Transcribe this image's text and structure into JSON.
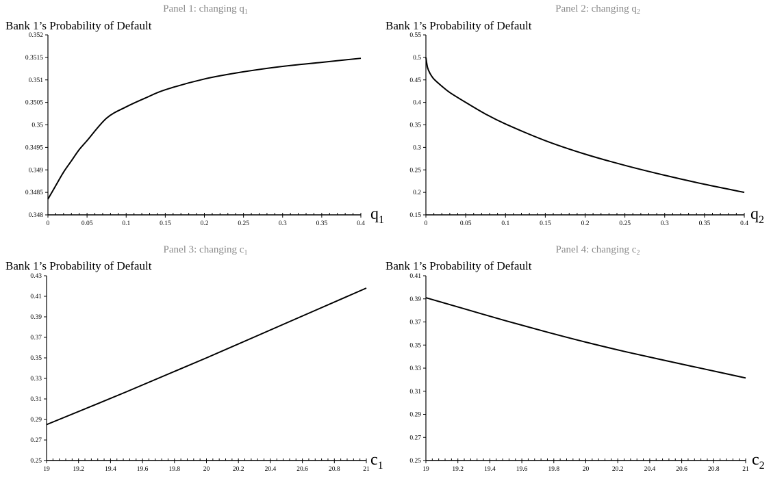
{
  "chart_data": [
    {
      "type": "line",
      "title": "Panel 1: changing q",
      "title_sub": "1",
      "ylabel": "Bank 1’s Probability of Default",
      "xlabel": "q",
      "xlabel_sub": "1",
      "xlim": [
        0,
        0.4
      ],
      "ylim": [
        0.348,
        0.352
      ],
      "x_ticks": [
        "0",
        "0.05",
        "0.1",
        "0.15",
        "0.2",
        "0.25",
        "0.3",
        "0.35",
        "0.4"
      ],
      "y_ticks": [
        "0.348",
        "0.3485",
        "0.349",
        "0.3495",
        "0.35",
        "0.3505",
        "0.351",
        "0.3515",
        "0.352"
      ],
      "grid": false,
      "series": [
        {
          "x": [
            0,
            0.01,
            0.02,
            0.03,
            0.04,
            0.05,
            0.075,
            0.1,
            0.125,
            0.15,
            0.2,
            0.25,
            0.3,
            0.35,
            0.4
          ],
          "y": [
            0.34835,
            0.34865,
            0.34895,
            0.3492,
            0.34945,
            0.34965,
            0.35015,
            0.3504,
            0.3506,
            0.35078,
            0.35102,
            0.35118,
            0.3513,
            0.35139,
            0.35148
          ]
        }
      ]
    },
    {
      "type": "line",
      "title": "Panel 2: changing q",
      "title_sub": "2",
      "ylabel": "Bank 1’s Probability of Default",
      "xlabel": "q",
      "xlabel_sub": "2",
      "xlim": [
        0,
        0.4
      ],
      "ylim": [
        0.15,
        0.55
      ],
      "x_ticks": [
        "0",
        "0.05",
        "0.1",
        "0.15",
        "0.2",
        "0.25",
        "0.3",
        "0.35",
        "0.4"
      ],
      "y_ticks": [
        "0.15",
        "0.2",
        "0.25",
        "0.3",
        "0.35",
        "0.4",
        "0.45",
        "0.5",
        "0.55"
      ],
      "grid": false,
      "series": [
        {
          "x": [
            0,
            0.002,
            0.005,
            0.01,
            0.02,
            0.03,
            0.05,
            0.075,
            0.1,
            0.15,
            0.2,
            0.25,
            0.3,
            0.35,
            0.4
          ],
          "y": [
            0.5,
            0.478,
            0.465,
            0.452,
            0.436,
            0.422,
            0.4,
            0.374,
            0.352,
            0.315,
            0.285,
            0.26,
            0.238,
            0.218,
            0.2
          ]
        }
      ]
    },
    {
      "type": "line",
      "title": "Panel 3: changing c",
      "title_sub": "1",
      "ylabel": "Bank 1’s Probability of Default",
      "xlabel": "c",
      "xlabel_sub": "1",
      "xlim": [
        19,
        21
      ],
      "ylim": [
        0.25,
        0.43
      ],
      "x_ticks": [
        "19",
        "19.2",
        "19.4",
        "19.6",
        "19.8",
        "20",
        "20.2",
        "20.4",
        "20.6",
        "20.8",
        "21"
      ],
      "y_ticks": [
        "0.25",
        "0.27",
        "0.29",
        "0.31",
        "0.33",
        "0.35",
        "0.37",
        "0.39",
        "0.41",
        "0.43"
      ],
      "grid": false,
      "series": [
        {
          "x": [
            19,
            19.5,
            20,
            20.5,
            21
          ],
          "y": [
            0.285,
            0.317,
            0.35,
            0.384,
            0.418
          ]
        }
      ]
    },
    {
      "type": "line",
      "title": "Panel 4:  changing c",
      "title_sub": "2",
      "ylabel": "Bank 1’s Probability of Default",
      "xlabel": "c",
      "xlabel_sub": "2",
      "xlim": [
        19,
        21
      ],
      "ylim": [
        0.25,
        0.41
      ],
      "x_ticks": [
        "19",
        "19.2",
        "19.4",
        "19.6",
        "19.8",
        "20",
        "20.2",
        "20.4",
        "20.6",
        "20.8",
        "21"
      ],
      "y_ticks": [
        "0.25",
        "0.27",
        "0.29",
        "0.31",
        "0.33",
        "0.35",
        "0.37",
        "0.39",
        "0.41"
      ],
      "grid": false,
      "series": [
        {
          "x": [
            19,
            19.25,
            19.5,
            19.75,
            20,
            20.25,
            20.5,
            20.75,
            21
          ],
          "y": [
            0.391,
            0.381,
            0.371,
            0.3615,
            0.3525,
            0.3442,
            0.3365,
            0.329,
            0.3215
          ]
        }
      ]
    }
  ]
}
